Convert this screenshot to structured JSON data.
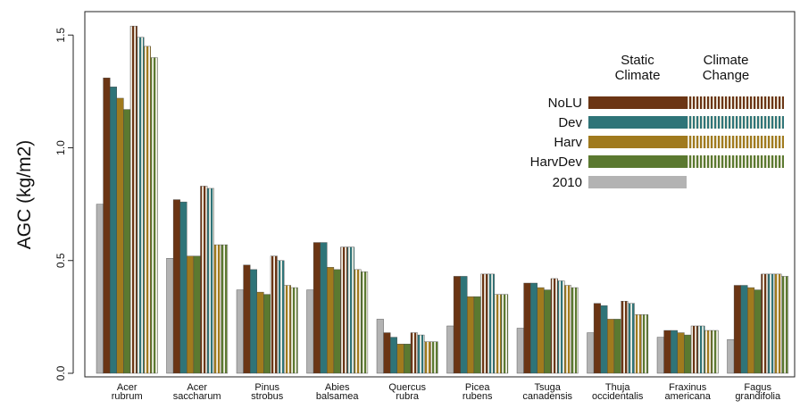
{
  "chart_data": {
    "type": "bar",
    "ylabel": "AGC (kg/m2)",
    "xlabel": "",
    "ylim": [
      0,
      1.62
    ],
    "yticks": [
      "0.0",
      "0.5",
      "1.0",
      "1.5"
    ],
    "grid": false,
    "legend_placement": "top-right",
    "categories": [
      [
        "Acer",
        "rubrum"
      ],
      [
        "Acer",
        "saccharum"
      ],
      [
        "Pinus",
        "strobus"
      ],
      [
        "Abies",
        "balsamea"
      ],
      [
        "Quercus",
        "rubra"
      ],
      [
        "Picea",
        "rubens"
      ],
      [
        "Tsuga",
        "canadensis"
      ],
      [
        "Thuja",
        "occidentalis"
      ],
      [
        "Fraxinus",
        "americana"
      ],
      [
        "Fagus",
        "grandifolia"
      ]
    ],
    "legend": {
      "column_headers": [
        [
          "Static",
          "Climate"
        ],
        [
          "Climate",
          "Change"
        ]
      ],
      "entries": [
        "NoLU",
        "Dev",
        "Harv",
        "HarvDev",
        "2010"
      ]
    },
    "series": [
      {
        "name": "2010",
        "scenario": "2010",
        "climate": "none",
        "color": "#b3b3b3",
        "values": [
          0.75,
          0.51,
          0.37,
          0.37,
          0.24,
          0.21,
          0.2,
          0.18,
          0.16,
          0.15
        ]
      },
      {
        "name": "NoLU",
        "scenario": "NoLU",
        "climate": "Static Climate",
        "color": "#6b3514",
        "values": [
          1.31,
          0.77,
          0.48,
          0.58,
          0.18,
          0.43,
          0.4,
          0.31,
          0.19,
          0.39
        ]
      },
      {
        "name": "Dev",
        "scenario": "Dev",
        "climate": "Static Climate",
        "color": "#2f7478",
        "values": [
          1.27,
          0.76,
          0.46,
          0.58,
          0.16,
          0.43,
          0.4,
          0.3,
          0.19,
          0.39
        ]
      },
      {
        "name": "Harv",
        "scenario": "Harv",
        "climate": "Static Climate",
        "color": "#a07a1e",
        "values": [
          1.22,
          0.52,
          0.36,
          0.47,
          0.13,
          0.34,
          0.38,
          0.24,
          0.18,
          0.38
        ]
      },
      {
        "name": "HarvDev",
        "scenario": "HarvDev",
        "climate": "Static Climate",
        "color": "#5b7930",
        "values": [
          1.17,
          0.52,
          0.35,
          0.46,
          0.13,
          0.34,
          0.37,
          0.24,
          0.17,
          0.37
        ]
      },
      {
        "name": "NoLU",
        "scenario": "NoLU",
        "climate": "Climate Change",
        "color": "#6b3514",
        "values": [
          1.54,
          0.83,
          0.52,
          0.56,
          0.18,
          0.44,
          0.42,
          0.32,
          0.21,
          0.44
        ]
      },
      {
        "name": "Dev",
        "scenario": "Dev",
        "climate": "Climate Change",
        "color": "#2f7478",
        "values": [
          1.49,
          0.82,
          0.5,
          0.56,
          0.17,
          0.44,
          0.41,
          0.31,
          0.21,
          0.44
        ]
      },
      {
        "name": "Harv",
        "scenario": "Harv",
        "climate": "Climate Change",
        "color": "#a07a1e",
        "values": [
          1.45,
          0.57,
          0.39,
          0.46,
          0.14,
          0.35,
          0.39,
          0.26,
          0.19,
          0.44
        ]
      },
      {
        "name": "HarvDev",
        "scenario": "HarvDev",
        "climate": "Climate Change",
        "color": "#5b7930",
        "values": [
          1.4,
          0.57,
          0.38,
          0.45,
          0.14,
          0.35,
          0.38,
          0.26,
          0.19,
          0.43
        ]
      }
    ]
  }
}
